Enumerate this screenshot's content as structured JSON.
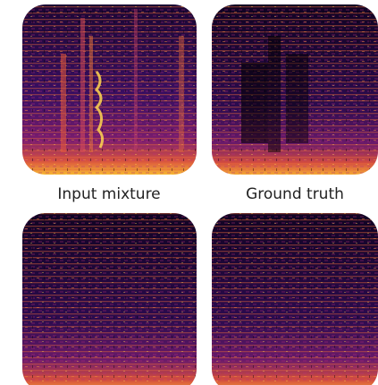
{
  "captions": [
    "Input mixture",
    "Ground truth"
  ]
}
